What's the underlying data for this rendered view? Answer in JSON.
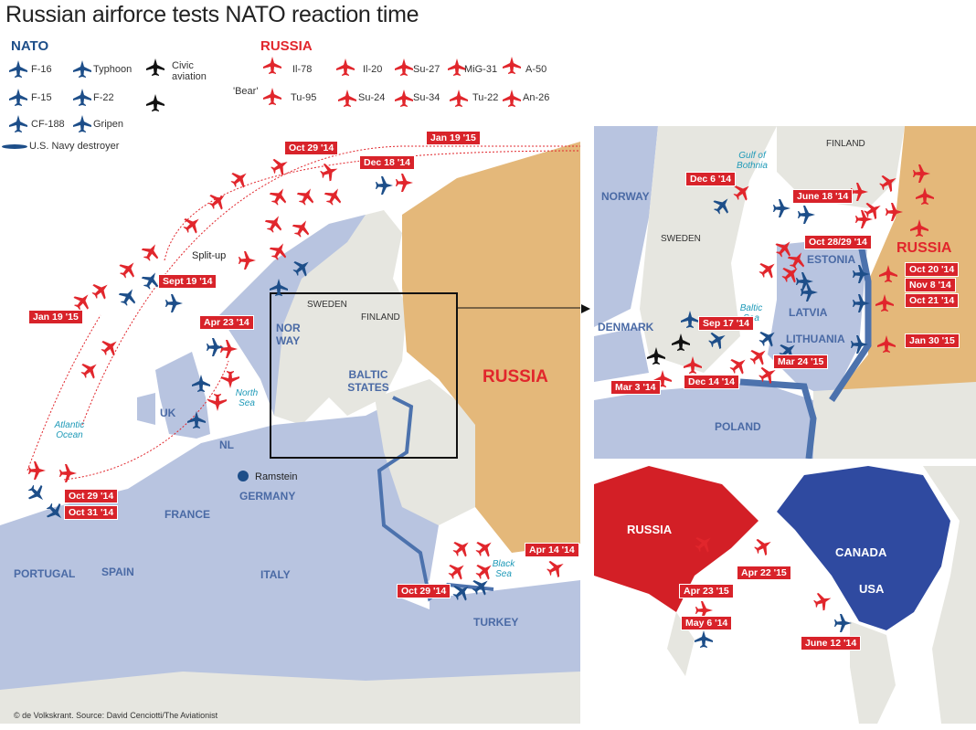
{
  "title": "Russian airforce tests NATO reaction time",
  "colors": {
    "nato": "#1d4e89",
    "russia": "#e1262c",
    "civic": "#111111",
    "nato_land": "#b8c4e0",
    "russia_land": "#e4b87a",
    "neutral_land": "#e6e6e0",
    "sea": "#ffffff",
    "border_line": "#4c72ad"
  },
  "legend": {
    "nato_heading": "NATO",
    "nato_items": [
      "F-16",
      "Typhoon",
      "F-15",
      "F-22",
      "CF-188",
      "Gripen"
    ],
    "civic": "Civic aviation",
    "destroyer": "U.S. Navy destroyer",
    "russia_heading": "RUSSIA",
    "russia_items": [
      "Il-78",
      "Il-20",
      "Su-27",
      "MiG-31",
      "A-50",
      "Tu-95",
      "Su-24",
      "Su-34",
      "Tu-22",
      "An-26"
    ],
    "bear": "'Bear'"
  },
  "main_map": {
    "dates": [
      "Jan 19 '15",
      "Oct 29 '14",
      "Dec 18 '14",
      "Sept 19 '14",
      "Jan 19 '15",
      "Apr 23 '14",
      "Oct 29 '14",
      "Oct 31 '14",
      "Apr 14 '14",
      "Oct 29 '14"
    ],
    "places": [
      "NOR WAY",
      "SWEDEN",
      "FINLAND",
      "BALTIC STATES",
      "RUSSIA",
      "UK",
      "NL",
      "GERMANY",
      "FRANCE",
      "PORTUGAL",
      "SPAIN",
      "ITALY",
      "TURKEY"
    ],
    "seas": [
      "North Sea",
      "Atlantic Ocean",
      "Black Sea"
    ],
    "ramstein": "Ramstein",
    "splitup": "Split-up"
  },
  "baltic_inset": {
    "dates": [
      "Dec 6 '14",
      "June 18 '14",
      "Oct 28/29 '14",
      "Oct 20 '14",
      "Nov 8 '14",
      "Oct 21 '14",
      "Jan 30 '15",
      "Sep 17 '14",
      "Mar 24 '15",
      "Dec 14 '14",
      "Mar 3 '14"
    ],
    "places": [
      "NORWAY",
      "SWEDEN",
      "FINLAND",
      "RUSSIA",
      "ESTONIA",
      "LATVIA",
      "LITHUANIA",
      "DENMARK",
      "POLAND"
    ],
    "seas": [
      "Gulf of Bothnia",
      "Baltic Sea"
    ]
  },
  "pacific_inset": {
    "dates": [
      "Apr 22 '15",
      "Apr 23 '15",
      "May 6 '14",
      "June 12 '14"
    ],
    "places": [
      "RUSSIA",
      "CANADA",
      "USA"
    ]
  },
  "credit": "© de Volkskrant. Source: David Cenciotti/The Aviationist"
}
